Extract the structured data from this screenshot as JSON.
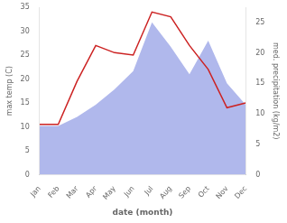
{
  "chart_data": {
    "type": "line",
    "xlabel": "date (month)",
    "ylabel": "max temp (C)",
    "y2label": "med. precipitation (kg/m2)",
    "categories": [
      "Jan",
      "Feb",
      "Mar",
      "Apr",
      "May",
      "Jun",
      "Jul",
      "Aug",
      "Sep",
      "Oct",
      "Nov",
      "Dec"
    ],
    "series": [
      {
        "type": "area",
        "axis": "y2",
        "color": "#b0b8ec",
        "values": [
          8.0,
          8.0,
          9.5,
          11.5,
          14.0,
          17.0,
          25.0,
          21.0,
          16.5,
          22.0,
          15.0,
          11.5
        ]
      },
      {
        "type": "line",
        "color": "#cc2222",
        "values": [
          10.5,
          10.5,
          19.5,
          27.0,
          25.5,
          25.0,
          34.0,
          33.0,
          27.0,
          22.0,
          14.0,
          15.0
        ]
      }
    ],
    "ylim": [
      0,
      35
    ],
    "yticks": [
      0,
      5,
      10,
      15,
      20,
      25,
      30,
      35
    ],
    "y2lim": [
      0,
      27.5
    ],
    "y2ticks": [
      0,
      5,
      10,
      15,
      20,
      25
    ],
    "grid": false
  }
}
